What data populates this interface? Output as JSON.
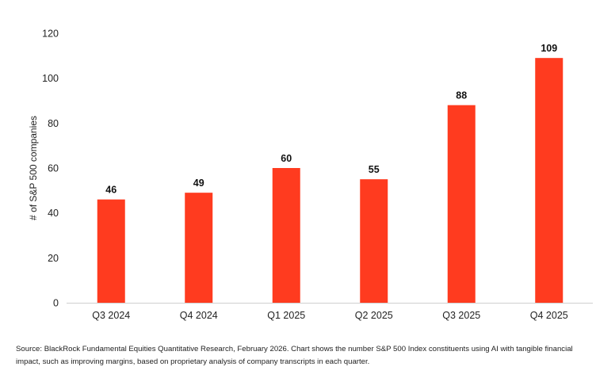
{
  "chart_data": {
    "type": "bar",
    "categories": [
      "Q3 2024",
      "Q4 2024",
      "Q1 2025",
      "Q2 2025",
      "Q3 2025",
      "Q4 2025"
    ],
    "values": [
      46,
      49,
      60,
      55,
      88,
      109
    ],
    "data_labels": [
      "46",
      "49",
      "60",
      "55",
      "88",
      "109"
    ],
    "title": "",
    "xlabel": "",
    "ylabel": "# of S&P 500 companies",
    "ylim": [
      0,
      120
    ],
    "yticks": [
      0,
      20,
      40,
      60,
      80,
      100,
      120
    ],
    "grid": false,
    "legend": "none",
    "bar_color": "#ff3b1f"
  },
  "source_note": "Source: BlackRock Fundamental Equities Quantitative Research, February 2026. Chart shows the number S&P 500 Index constituents using AI with tangible financial impact, such as improving margins, based on proprietary analysis of company transcripts in each quarter."
}
